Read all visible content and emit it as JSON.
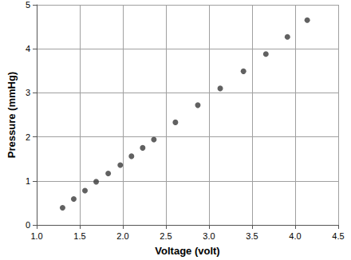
{
  "chart_data": {
    "type": "scatter",
    "x_label": "Voltage (volt)",
    "y_label": "Pressure (mmHg)",
    "x": [
      1.3,
      1.43,
      1.56,
      1.69,
      1.83,
      1.97,
      2.1,
      2.23,
      2.36,
      2.61,
      2.87,
      3.13,
      3.4,
      3.66,
      3.91,
      4.14
    ],
    "values": [
      0.39,
      0.59,
      0.78,
      0.98,
      1.17,
      1.36,
      1.56,
      1.75,
      1.94,
      2.33,
      2.72,
      3.1,
      3.49,
      3.88,
      4.27,
      4.65
    ],
    "color": "#3a3a3a",
    "marker": "circle",
    "xlim": [
      1.0,
      4.5
    ],
    "xticks": [
      {
        "value": 1.0,
        "label": "1.0"
      },
      {
        "value": 1.5,
        "label": "1.5"
      },
      {
        "value": 2.0,
        "label": "2.0"
      },
      {
        "value": 2.5,
        "label": "2.5"
      },
      {
        "value": 3.0,
        "label": "3.0"
      },
      {
        "value": 3.5,
        "label": "3.5"
      },
      {
        "value": 4.0,
        "label": "4.0"
      },
      {
        "value": 4.5,
        "label": "4.5"
      }
    ],
    "ylim": [
      0,
      5
    ],
    "yticks": [
      0,
      1,
      2,
      3,
      4,
      5
    ],
    "grid": true
  }
}
